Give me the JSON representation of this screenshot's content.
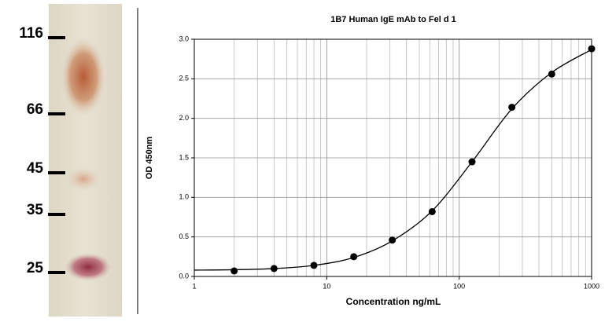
{
  "gel": {
    "markers": [
      116,
      66,
      45,
      35,
      25
    ]
  },
  "chart_data": {
    "type": "scatter",
    "title": "1B7 Human IgE mAb to Fel d 1",
    "xlabel": "Concentration ng/mL",
    "ylabel": "OD 450nm",
    "x": [
      2,
      4,
      8,
      16,
      31.25,
      62.5,
      125,
      250,
      500,
      1000
    ],
    "values": [
      0.07,
      0.1,
      0.14,
      0.25,
      0.46,
      0.82,
      1.45,
      2.14,
      2.56,
      2.88
    ],
    "color": "#000000",
    "curve": {
      "x": [
        1,
        2,
        4,
        8,
        16,
        31.25,
        62.5,
        125,
        250,
        500,
        1000
      ],
      "values": [
        0.08,
        0.085,
        0.1,
        0.14,
        0.24,
        0.45,
        0.83,
        1.45,
        2.12,
        2.58,
        2.87
      ]
    },
    "xlim": [
      1,
      1000
    ],
    "xticks": [
      1,
      10,
      100,
      1000
    ],
    "xlog": true,
    "ylim": [
      0,
      3
    ],
    "yticks": [
      {
        "value": 0,
        "label": "0.0"
      },
      {
        "value": 0.5,
        "label": "0.5"
      },
      {
        "value": 1,
        "label": "1.0"
      },
      {
        "value": 1.5,
        "label": "1.5"
      },
      {
        "value": 2,
        "label": "2.0"
      },
      {
        "value": 2.5,
        "label": "2.5"
      },
      {
        "value": 3,
        "label": "3.0"
      }
    ],
    "grid": true
  }
}
